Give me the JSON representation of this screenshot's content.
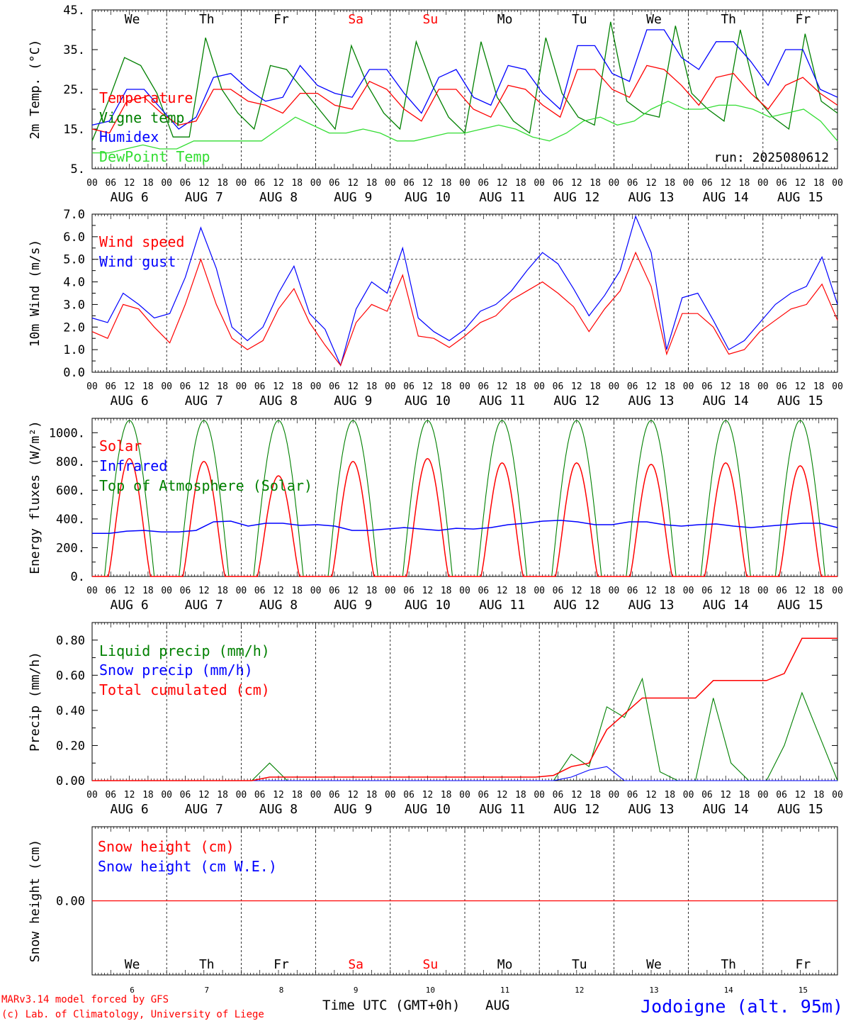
{
  "colors": {
    "red": "#ff0000",
    "green": "#008000",
    "blue": "#0000ff",
    "lightgreen": "#33dd33",
    "black": "#000000"
  },
  "days": [
    "We",
    "Th",
    "Fr",
    "Sa",
    "Su",
    "Mo",
    "Tu",
    "We",
    "Th",
    "Fr"
  ],
  "weekend_days": [
    3,
    4
  ],
  "dates": [
    "AUG  6",
    "AUG  7",
    "AUG  8",
    "AUG  9",
    "AUG 10",
    "AUG 11",
    "AUG 12",
    "AUG 13",
    "AUG 14",
    "AUG 15"
  ],
  "day_numbers": [
    "6",
    "7",
    "8",
    "9",
    "10",
    "11",
    "12",
    "13",
    "14",
    "15"
  ],
  "hour_labels": [
    "00",
    "06",
    "12",
    "18"
  ],
  "hour_end_label": "00",
  "run_label": "run: 2025080612",
  "xlabel": "Time UTC (GMT+0h)",
  "month_label": "AUG",
  "footer": {
    "model": "MARv3.14 model forced by GFS",
    "credit": "(c) Lab. of Climatology, University of Liege",
    "location": "Jodoigne (alt. 95m)"
  },
  "chart_data": [
    {
      "type": "line",
      "ylabel": "2m Temp. (°C)",
      "ylim": [
        5,
        45
      ],
      "yticks": [
        {
          "v": 5,
          "label": "5."
        },
        {
          "v": 15,
          "label": "15."
        },
        {
          "v": 25,
          "label": "25."
        },
        {
          "v": 35,
          "label": "35."
        },
        {
          "v": 45,
          "label": "45."
        }
      ],
      "series": [
        {
          "name": "Vigne temp",
          "color": "#008000",
          "values": [
            12,
            22,
            33,
            31,
            24,
            13,
            13,
            38,
            25,
            19,
            15,
            31,
            30,
            25,
            20,
            15,
            36,
            26,
            19,
            15,
            37,
            26,
            18,
            14,
            37,
            23,
            17,
            14,
            38,
            24,
            18,
            16,
            42,
            22,
            19,
            18,
            41,
            24,
            20,
            17,
            40,
            23,
            18,
            15,
            39,
            22,
            19
          ]
        },
        {
          "name": "Humidex",
          "color": "#0000ff",
          "values": [
            16,
            17,
            25,
            25,
            20,
            15,
            18,
            28,
            29,
            25,
            22,
            23,
            31,
            26,
            24,
            23,
            30,
            30,
            24,
            19,
            28,
            30,
            23,
            21,
            31,
            30,
            24,
            20,
            36,
            36,
            29,
            27,
            40,
            40,
            33,
            30,
            37,
            37,
            32,
            26,
            35,
            35,
            25,
            23
          ]
        },
        {
          "name": "Temperature",
          "color": "#ff0000",
          "values": [
            15,
            14,
            22,
            23,
            19,
            16,
            17,
            25,
            25,
            22,
            21,
            19,
            24,
            24,
            21,
            20,
            27,
            25,
            20,
            17,
            25,
            25,
            20,
            18,
            26,
            25,
            21,
            18,
            30,
            30,
            25,
            23,
            31,
            30,
            26,
            21,
            28,
            29,
            24,
            20,
            26,
            28,
            24,
            21
          ]
        },
        {
          "name": "DewPoint Temp",
          "color": "#33dd33",
          "values": [
            9,
            9,
            10,
            11,
            10,
            10,
            12,
            12,
            12,
            12,
            12,
            15,
            18,
            16,
            14,
            14,
            15,
            14,
            12,
            12,
            13,
            14,
            14,
            15,
            16,
            15,
            13,
            12,
            14,
            17,
            18,
            16,
            17,
            20,
            22,
            20,
            20,
            21,
            21,
            20,
            18,
            19,
            20,
            17,
            12
          ]
        }
      ]
    },
    {
      "type": "line",
      "ylabel": "10m Wind (m/s)",
      "ylim": [
        0,
        7
      ],
      "ref_line": 5,
      "yticks": [
        {
          "v": 0,
          "label": "0.0"
        },
        {
          "v": 1,
          "label": "1.0"
        },
        {
          "v": 2,
          "label": "2.0"
        },
        {
          "v": 3,
          "label": "3.0"
        },
        {
          "v": 4,
          "label": "4.0"
        },
        {
          "v": 5,
          "label": "5.0"
        },
        {
          "v": 6,
          "label": "6.0"
        },
        {
          "v": 7,
          "label": "7.0"
        }
      ],
      "series": [
        {
          "name": "Wind gust",
          "color": "#0000ff",
          "values": [
            2.4,
            2.2,
            3.5,
            3.0,
            2.4,
            2.6,
            4.2,
            6.4,
            4.6,
            2.0,
            1.4,
            2.0,
            3.5,
            4.7,
            2.6,
            1.9,
            0.3,
            2.8,
            4.0,
            3.5,
            5.5,
            2.4,
            1.8,
            1.4,
            1.9,
            2.7,
            3.0,
            3.6,
            4.5,
            5.3,
            4.8,
            3.7,
            2.5,
            3.4,
            4.5,
            6.9,
            5.3,
            1.0,
            3.3,
            3.5,
            2.3,
            1.0,
            1.4,
            2.2,
            3.0,
            3.5,
            3.8,
            5.1,
            3.0
          ]
        },
        {
          "name": "Wind speed",
          "color": "#ff0000",
          "values": [
            1.8,
            1.5,
            3.0,
            2.8,
            2.0,
            1.3,
            3.0,
            5.0,
            3.0,
            1.5,
            1.0,
            1.4,
            2.8,
            3.7,
            2.2,
            1.2,
            0.3,
            2.2,
            3.0,
            2.7,
            4.3,
            1.6,
            1.5,
            1.1,
            1.6,
            2.2,
            2.5,
            3.2,
            3.6,
            4.0,
            3.5,
            2.9,
            1.8,
            2.8,
            3.6,
            5.3,
            3.8,
            0.8,
            2.6,
            2.6,
            2.0,
            0.8,
            1.0,
            1.8,
            2.3,
            2.8,
            3.0,
            3.9,
            2.3
          ]
        }
      ]
    },
    {
      "type": "line",
      "ylabel": "Energy fluxes (W/m²)",
      "ylim": [
        0,
        1100
      ],
      "yticks": [
        {
          "v": 0,
          "label": "0."
        },
        {
          "v": 200,
          "label": "200."
        },
        {
          "v": 400,
          "label": "400."
        },
        {
          "v": 600,
          "label": "600."
        },
        {
          "v": 800,
          "label": "800."
        },
        {
          "v": 1000,
          "label": "1000."
        }
      ],
      "series": [
        {
          "name": "Top of Atmosphere (Solar)",
          "color": "#008000",
          "peak": 1085
        },
        {
          "name": "Solar",
          "color": "#ff0000",
          "peaks": [
            820,
            800,
            700,
            800,
            820,
            790,
            790,
            780,
            790,
            770
          ]
        },
        {
          "name": "Infrared",
          "color": "#0000ff",
          "values": [
            300,
            300,
            315,
            320,
            310,
            310,
            320,
            380,
            385,
            350,
            370,
            370,
            355,
            360,
            350,
            320,
            320,
            330,
            340,
            330,
            320,
            335,
            330,
            340,
            360,
            370,
            385,
            390,
            380,
            360,
            360,
            380,
            380,
            360,
            350,
            360,
            365,
            350,
            340,
            350,
            360,
            370,
            370,
            340
          ]
        }
      ]
    },
    {
      "type": "line",
      "ylabel": "Precip (mm/h)",
      "ylim": [
        0,
        0.9
      ],
      "yticks": [
        {
          "v": 0,
          "label": "0.00"
        },
        {
          "v": 0.2,
          "label": "0.20"
        },
        {
          "v": 0.4,
          "label": "0.40"
        },
        {
          "v": 0.6,
          "label": "0.60"
        },
        {
          "v": 0.8,
          "label": "0.80"
        }
      ],
      "series": [
        {
          "name": "Liquid precip (mm/h)",
          "color": "#008000",
          "values": [
            0,
            0,
            0,
            0,
            0,
            0,
            0,
            0,
            0,
            0,
            0.1,
            0,
            0,
            0,
            0,
            0,
            0,
            0,
            0,
            0,
            0,
            0,
            0,
            0,
            0,
            0,
            0,
            0.15,
            0.08,
            0.42,
            0.36,
            0.58,
            0.05,
            0,
            0,
            0.47,
            0.1,
            0,
            0,
            0.2,
            0.5,
            0.25,
            0
          ]
        },
        {
          "name": "Snow precip (mm/h)",
          "color": "#0000ff",
          "values": [
            0,
            0,
            0,
            0,
            0,
            0,
            0,
            0,
            0,
            0,
            0,
            0,
            0,
            0,
            0,
            0,
            0,
            0,
            0,
            0,
            0,
            0,
            0,
            0,
            0,
            0,
            0,
            0.02,
            0.06,
            0.08,
            0,
            0,
            0,
            0,
            0,
            0,
            0,
            0,
            0,
            0,
            0,
            0,
            0
          ]
        },
        {
          "name": "Total cumulated (cm)",
          "color": "#ff0000",
          "values": [
            0,
            0,
            0,
            0,
            0,
            0,
            0,
            0,
            0,
            0,
            0.02,
            0.02,
            0.02,
            0.02,
            0.02,
            0.02,
            0.02,
            0.02,
            0.02,
            0.02,
            0.02,
            0.02,
            0.02,
            0.02,
            0.02,
            0.02,
            0.03,
            0.08,
            0.1,
            0.29,
            0.38,
            0.47,
            0.47,
            0.47,
            0.47,
            0.57,
            0.57,
            0.57,
            0.57,
            0.61,
            0.81,
            0.81,
            0.81
          ]
        }
      ]
    },
    {
      "type": "line",
      "ylabel": "Snow height (cm)",
      "ylim": [
        -1,
        1
      ],
      "yticks": [
        {
          "v": 0,
          "label": "0.00"
        }
      ],
      "series": [
        {
          "name": "Snow height (cm)",
          "color": "#ff0000",
          "values": [
            0,
            0
          ]
        },
        {
          "name": "Snow height (cm W.E.)",
          "color": "#0000ff",
          "values": []
        }
      ]
    }
  ]
}
